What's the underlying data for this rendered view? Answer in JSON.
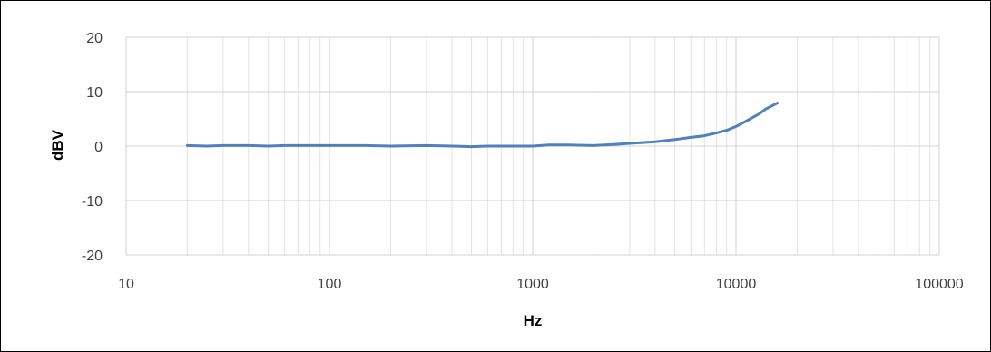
{
  "chart_data": {
    "type": "line",
    "xlabel": "Hz",
    "ylabel": "dBV",
    "x_scale": "log",
    "xlim": [
      10,
      100000
    ],
    "ylim": [
      -20,
      20
    ],
    "x_ticks": [
      10,
      100,
      1000,
      10000,
      100000
    ],
    "x_tick_labels": [
      "10",
      "100",
      "1000",
      "10000",
      "100000"
    ],
    "y_ticks": [
      20,
      10,
      0,
      -10,
      -20
    ],
    "y_tick_labels": [
      "20",
      "10",
      "0",
      "-10",
      "-20"
    ],
    "grid": true,
    "legend": "none",
    "series": [
      {
        "color": "#4f81bd",
        "x": [
          20,
          25,
          30,
          40,
          50,
          60,
          80,
          100,
          150,
          200,
          300,
          400,
          500,
          600,
          800,
          1000,
          1200,
          1500,
          2000,
          2500,
          3000,
          4000,
          5000,
          6000,
          7000,
          8000,
          9000,
          10000,
          11000,
          12000,
          13000,
          14000,
          16000
        ],
        "y": [
          0.1,
          0.0,
          0.1,
          0.1,
          0.0,
          0.1,
          0.1,
          0.1,
          0.1,
          0.0,
          0.1,
          0.0,
          -0.1,
          0.0,
          0.0,
          0.0,
          0.2,
          0.2,
          0.1,
          0.3,
          0.5,
          0.8,
          1.2,
          1.6,
          1.9,
          2.4,
          2.9,
          3.6,
          4.4,
          5.2,
          5.9,
          6.8,
          7.9
        ]
      }
    ]
  }
}
